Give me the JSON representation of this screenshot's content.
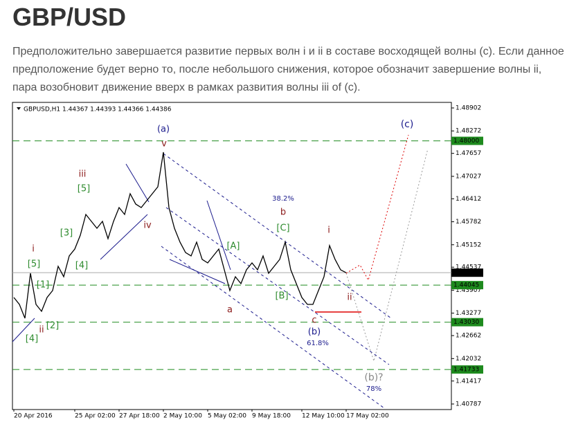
{
  "header": {
    "title": "GBP/USD",
    "text": "Предположительно завершается развитие первых волн i и ii в составе восходящей волны (c). Если данное предположение будет верно то, после небольшого снижения, которое обозначит завершение волны ii, пара возобновит движение вверх в рамках развития волны iii of (c)."
  },
  "chart_data": {
    "type": "line",
    "subtitle": "GBPUSD,H1  1.44367 1.44393 1.44366 1.44386",
    "color": "#000000",
    "categories": [
      "20 Apr 2016",
      null,
      null,
      null,
      null,
      null,
      null,
      null,
      null,
      null,
      null,
      "25 Apr 02:00",
      null,
      null,
      null,
      null,
      null,
      null,
      null,
      "27 Apr 18:00",
      null,
      null,
      null,
      null,
      null,
      null,
      null,
      "2 May 10:00",
      null,
      null,
      null,
      null,
      null,
      null,
      null,
      "5 May 02:00",
      null,
      null,
      null,
      null,
      null,
      null,
      null,
      "9 May 18:00",
      null,
      null,
      null,
      null,
      null,
      null,
      null,
      null,
      "12 May 10:00",
      null,
      null,
      null,
      null,
      null,
      null,
      null,
      "17 May 02:00"
    ],
    "values": [
      1.43707,
      1.43517,
      1.43138,
      1.44371,
      1.43517,
      1.43328,
      1.43707,
      1.43897,
      1.4456,
      1.44276,
      1.44845,
      1.45034,
      1.45413,
      1.45982,
      1.45793,
      1.45603,
      1.45793,
      1.45319,
      1.45793,
      1.46172,
      1.45982,
      1.46551,
      1.46267,
      1.46172,
      1.46361,
      1.46551,
      1.46741,
      1.47689,
      1.46172,
      1.45603,
      1.45224,
      1.44939,
      1.44845,
      1.45224,
      1.4475,
      1.44655,
      1.44845,
      1.45034,
      1.44465,
      1.43897,
      1.44276,
      1.44086,
      1.44465,
      1.44655,
      1.44465,
      1.44845,
      1.44371,
      1.4456,
      1.4475,
      1.45224,
      1.44465,
      1.44086,
      1.43707,
      1.43517,
      1.43517,
      1.43897,
      1.44276,
      1.45129,
      1.4475,
      1.44465,
      1.44386
    ],
    "ylim": [
      1.40635,
      1.49054
    ],
    "yticks": [
      1.48902,
      1.48272,
      1.47657,
      1.47027,
      1.46412,
      1.45782,
      1.45152,
      1.44537,
      1.43907,
      1.43277,
      1.42662,
      1.42032,
      1.41417,
      1.40787
    ],
    "levels": [
      {
        "value": 1.48,
        "label": "1.48000"
      },
      {
        "value": 1.44045,
        "label": "1.44045"
      },
      {
        "value": 1.4303,
        "label": "1.43030"
      },
      {
        "value": 1.41733,
        "label": "1.41733"
      }
    ],
    "level_color": "#1e8a1e",
    "last_price": 1.44386,
    "annotations": [
      "(a)",
      "v",
      "iii",
      "[5]",
      "iv",
      "[3]",
      "[4]",
      "i",
      "[5]",
      "[1]",
      "[2]",
      "ii",
      "[4]",
      "38.2%",
      "b",
      "[C]",
      "[A]",
      "[B]",
      "a",
      "c",
      "(b)",
      "61.8%",
      "i",
      "ii",
      "(c)",
      "(b)?",
      "78%"
    ]
  }
}
